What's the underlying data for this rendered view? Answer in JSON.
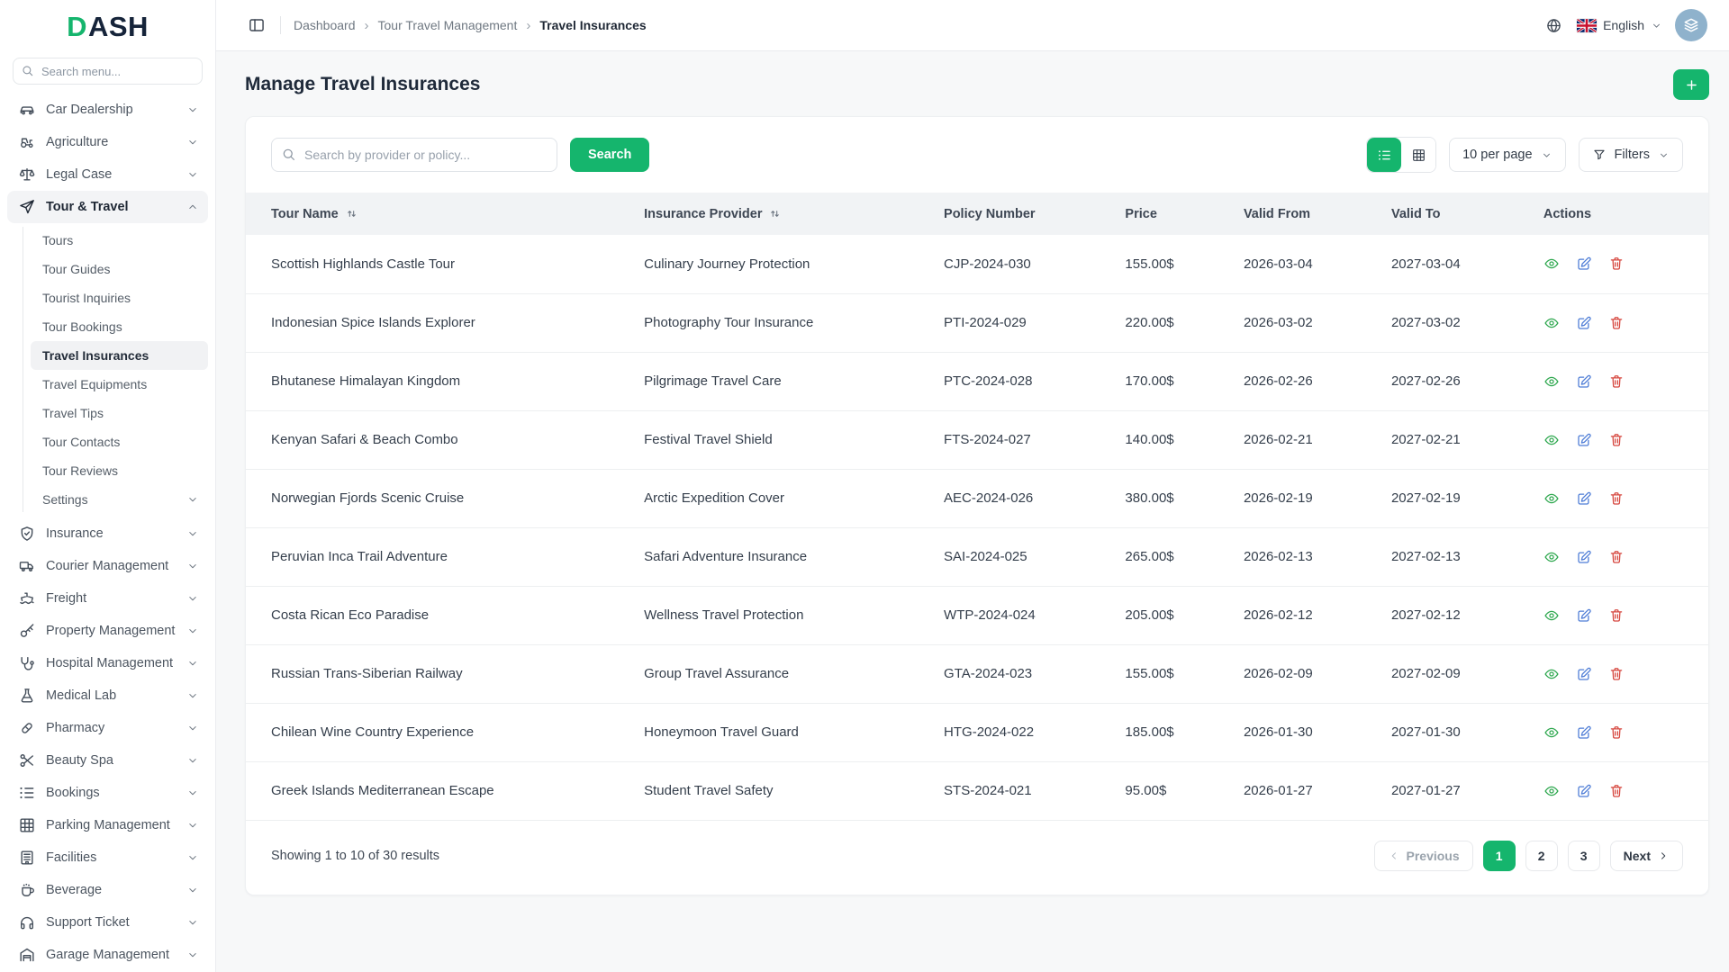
{
  "brand": {
    "mark": "D",
    "rest": "ASH"
  },
  "colors": {
    "accent": "#15B56D",
    "action_view": "#2FA84F",
    "action_edit": "#4D7CD6",
    "action_delete": "#D6453D",
    "avatar_bg": "#8FB2CC"
  },
  "sidebar": {
    "search_placeholder": "Search menu...",
    "items": [
      {
        "label": "Car Dealership",
        "icon": "car",
        "expandable": true
      },
      {
        "label": "Agriculture",
        "icon": "tractor",
        "expandable": true
      },
      {
        "label": "Legal Case",
        "icon": "scales",
        "expandable": true
      },
      {
        "label": "Tour & Travel",
        "icon": "plane",
        "expandable": true,
        "expanded": true,
        "active": true,
        "children": [
          {
            "label": "Tours"
          },
          {
            "label": "Tour Guides"
          },
          {
            "label": "Tourist Inquiries"
          },
          {
            "label": "Tour Bookings"
          },
          {
            "label": "Travel Insurances",
            "active": true
          },
          {
            "label": "Travel Equipments"
          },
          {
            "label": "Travel Tips"
          },
          {
            "label": "Tour Contacts"
          },
          {
            "label": "Tour Reviews"
          },
          {
            "label": "Settings",
            "expandable": true
          }
        ]
      },
      {
        "label": "Insurance",
        "icon": "shield",
        "expandable": true
      },
      {
        "label": "Courier Management",
        "icon": "truck",
        "expandable": true
      },
      {
        "label": "Freight",
        "icon": "ship",
        "expandable": true
      },
      {
        "label": "Property Management",
        "icon": "key",
        "expandable": true
      },
      {
        "label": "Hospital Management",
        "icon": "stethoscope",
        "expandable": true
      },
      {
        "label": "Medical Lab",
        "icon": "flask",
        "expandable": true
      },
      {
        "label": "Pharmacy",
        "icon": "pill",
        "expandable": true
      },
      {
        "label": "Beauty Spa",
        "icon": "scissors",
        "expandable": true
      },
      {
        "label": "Bookings",
        "icon": "list",
        "expandable": true
      },
      {
        "label": "Parking Management",
        "icon": "grid",
        "expandable": true
      },
      {
        "label": "Facilities",
        "icon": "building",
        "expandable": true
      },
      {
        "label": "Beverage",
        "icon": "cup",
        "expandable": true
      },
      {
        "label": "Support Ticket",
        "icon": "headphones",
        "expandable": true
      },
      {
        "label": "Garage Management",
        "icon": "garage",
        "expandable": true
      }
    ]
  },
  "topbar": {
    "breadcrumbs": [
      "Dashboard",
      "Tour Travel Management",
      "Travel Insurances"
    ],
    "language": "English"
  },
  "page": {
    "title": "Manage Travel Insurances"
  },
  "toolbar": {
    "search_placeholder": "Search by provider or policy...",
    "search_button": "Search",
    "per_page": "10 per page",
    "filters_label": "Filters"
  },
  "table": {
    "columns": [
      {
        "label": "Tour Name",
        "sortable": true,
        "width": "25.5%"
      },
      {
        "label": "Insurance Provider",
        "sortable": true,
        "width": "20.5%"
      },
      {
        "label": "Policy Number",
        "width": "12.4%"
      },
      {
        "label": "Price",
        "width": "8.1%"
      },
      {
        "label": "Valid From",
        "width": "10.1%"
      },
      {
        "label": "Valid To",
        "width": "10.4%"
      },
      {
        "label": "Actions",
        "width": "13%"
      }
    ],
    "row_actions": [
      "view",
      "edit",
      "delete"
    ],
    "rows": [
      {
        "tour": "Scottish Highlands Castle Tour",
        "provider": "Culinary Journey Protection",
        "policy": "CJP-2024-030",
        "price": "155.00$",
        "valid_from": "2026-03-04",
        "valid_to": "2027-03-04"
      },
      {
        "tour": "Indonesian Spice Islands Explorer",
        "provider": "Photography Tour Insurance",
        "policy": "PTI-2024-029",
        "price": "220.00$",
        "valid_from": "2026-03-02",
        "valid_to": "2027-03-02"
      },
      {
        "tour": "Bhutanese Himalayan Kingdom",
        "provider": "Pilgrimage Travel Care",
        "policy": "PTC-2024-028",
        "price": "170.00$",
        "valid_from": "2026-02-26",
        "valid_to": "2027-02-26"
      },
      {
        "tour": "Kenyan Safari & Beach Combo",
        "provider": "Festival Travel Shield",
        "policy": "FTS-2024-027",
        "price": "140.00$",
        "valid_from": "2026-02-21",
        "valid_to": "2027-02-21"
      },
      {
        "tour": "Norwegian Fjords Scenic Cruise",
        "provider": "Arctic Expedition Cover",
        "policy": "AEC-2024-026",
        "price": "380.00$",
        "valid_from": "2026-02-19",
        "valid_to": "2027-02-19"
      },
      {
        "tour": "Peruvian Inca Trail Adventure",
        "provider": "Safari Adventure Insurance",
        "policy": "SAI-2024-025",
        "price": "265.00$",
        "valid_from": "2026-02-13",
        "valid_to": "2027-02-13"
      },
      {
        "tour": "Costa Rican Eco Paradise",
        "provider": "Wellness Travel Protection",
        "policy": "WTP-2024-024",
        "price": "205.00$",
        "valid_from": "2026-02-12",
        "valid_to": "2027-02-12"
      },
      {
        "tour": "Russian Trans-Siberian Railway",
        "provider": "Group Travel Assurance",
        "policy": "GTA-2024-023",
        "price": "155.00$",
        "valid_from": "2026-02-09",
        "valid_to": "2027-02-09"
      },
      {
        "tour": "Chilean Wine Country Experience",
        "provider": "Honeymoon Travel Guard",
        "policy": "HTG-2024-022",
        "price": "185.00$",
        "valid_from": "2026-01-30",
        "valid_to": "2027-01-30"
      },
      {
        "tour": "Greek Islands Mediterranean Escape",
        "provider": "Student Travel Safety",
        "policy": "STS-2024-021",
        "price": "95.00$",
        "valid_from": "2026-01-27",
        "valid_to": "2027-01-27"
      }
    ]
  },
  "footer": {
    "summary": "Showing 1 to 10 of 30 results",
    "previous_label": "Previous",
    "next_label": "Next",
    "pages": [
      "1",
      "2",
      "3"
    ],
    "active_page": "1"
  }
}
